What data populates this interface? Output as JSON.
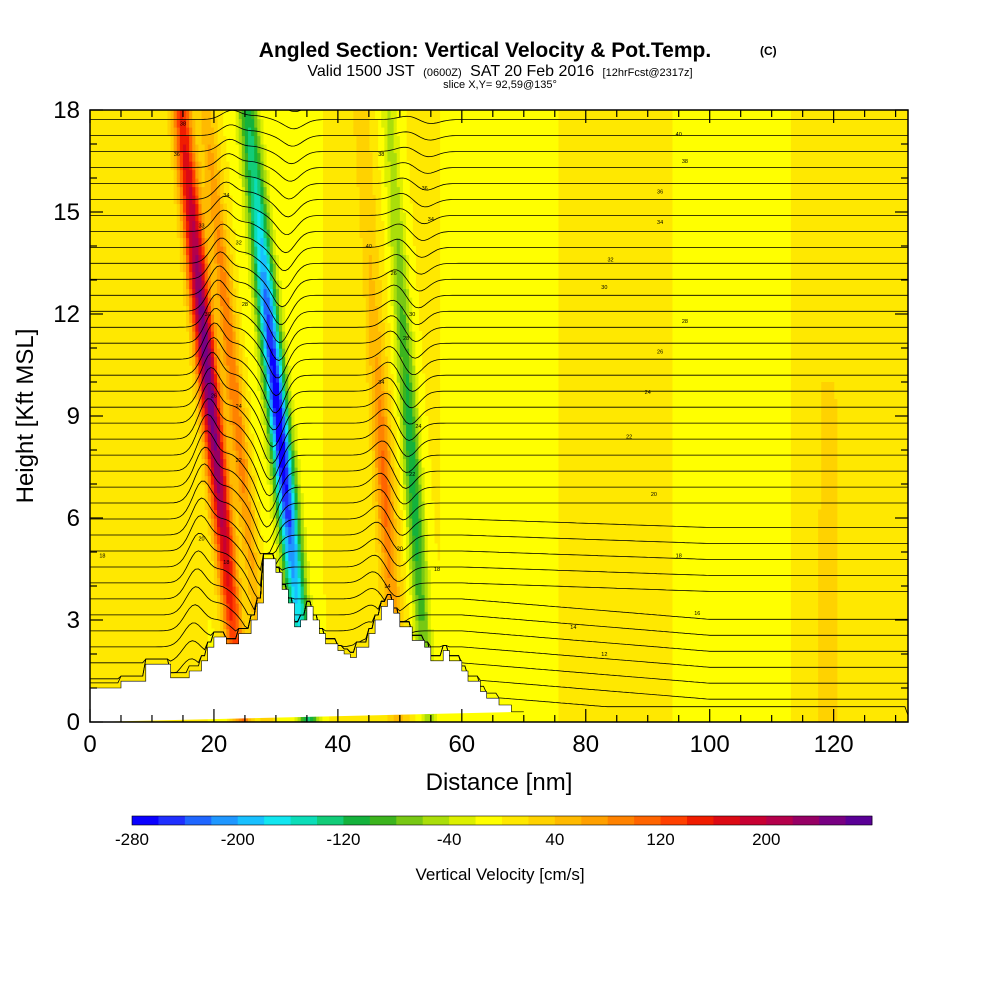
{
  "chart_data": {
    "type": "heatmap",
    "title": "Angled Section: Vertical Velocity & Pot.Temp.",
    "title_mark": "(C)",
    "subtitle_parts": [
      "Valid 1500 JST",
      "(0600Z)",
      "SAT 20 Feb 2016",
      "[12hrFcst@2317z]"
    ],
    "slice_label": "slice X,Y= 92,59@135°",
    "xlabel": "Distance [nm]",
    "ylabel": "Height [Kft MSL]",
    "xlim": [
      0,
      132
    ],
    "ylim": [
      0,
      18
    ],
    "x_ticks": [
      0,
      20,
      40,
      60,
      80,
      100,
      120
    ],
    "y_ticks": [
      0,
      3,
      6,
      9,
      12,
      15,
      18
    ],
    "grid": false,
    "colorbar": {
      "label": "Vertical Velocity [cm/s]",
      "range": [
        -280,
        280
      ],
      "step": 20,
      "tick_labels": [
        -280,
        -200,
        -120,
        -40,
        40,
        120,
        200
      ],
      "colors": [
        "#0a00ff",
        "#1f2fff",
        "#1f66ff",
        "#1f97ff",
        "#18c0ff",
        "#12e6f0",
        "#0cddb8",
        "#12cc78",
        "#14b23c",
        "#3cb41e",
        "#78c814",
        "#aade0a",
        "#dcf000",
        "#ffff00",
        "#ffe800",
        "#ffd200",
        "#ffba00",
        "#ffa000",
        "#ff8200",
        "#ff6400",
        "#ff4000",
        "#f01c00",
        "#dc0a14",
        "#c80032",
        "#b4004b",
        "#960064",
        "#780082",
        "#5a0096"
      ]
    },
    "velocity_features": [
      {
        "name": "updraft-1",
        "x_center": 19,
        "z_range": [
          2.5,
          18
        ],
        "peak": 260
      },
      {
        "name": "updraft-2",
        "x_center": 23,
        "z_range": [
          2.5,
          18
        ],
        "peak": 100
      },
      {
        "name": "downdraft-1",
        "x_center": 29,
        "z_range": [
          5,
          18
        ],
        "peak": -280
      },
      {
        "name": "updraft-3",
        "x_center": 47.5,
        "z_range": [
          3,
          11
        ],
        "peak": 100
      },
      {
        "name": "downdraft-2",
        "x_center": 51,
        "z_range": [
          3.5,
          17
        ],
        "peak": -120
      }
    ],
    "terrain": {
      "x": [
        0,
        5,
        5,
        9,
        9,
        13,
        13,
        16,
        16,
        18,
        18,
        19,
        19,
        20,
        20,
        22,
        22,
        24,
        24,
        26,
        26,
        27,
        27,
        28,
        28,
        30,
        30,
        31,
        31,
        32,
        32,
        33,
        33,
        34,
        34,
        35,
        35,
        36,
        36,
        37,
        37,
        38,
        38,
        40,
        40,
        41,
        41,
        42,
        42,
        43,
        43,
        45,
        45,
        46,
        46,
        47,
        47,
        48,
        48,
        49,
        49,
        50,
        50,
        52,
        52,
        54,
        54,
        55,
        55,
        57,
        57,
        58,
        58,
        60,
        60,
        61,
        61,
        63,
        63,
        64,
        64,
        66,
        66,
        68,
        68,
        70,
        70,
        132
      ],
      "z": [
        1.0,
        1.0,
        1.2,
        1.2,
        1.7,
        1.7,
        1.3,
        1.3,
        1.5,
        1.5,
        1.8,
        1.8,
        2.2,
        2.2,
        2.5,
        2.5,
        2.3,
        2.3,
        2.6,
        2.6,
        3.0,
        3.0,
        3.5,
        3.5,
        4.8,
        4.8,
        4.4,
        4.4,
        3.9,
        3.9,
        3.5,
        3.5,
        2.8,
        2.8,
        3.0,
        3.0,
        3.4,
        3.4,
        3.0,
        3.0,
        2.6,
        2.6,
        2.3,
        2.3,
        2.1,
        2.1,
        2.0,
        2.0,
        1.9,
        1.9,
        2.2,
        2.2,
        2.6,
        2.6,
        3.0,
        3.0,
        3.4,
        3.4,
        3.6,
        3.6,
        3.2,
        3.2,
        2.8,
        2.8,
        2.4,
        2.4,
        2.2,
        2.2,
        1.8,
        1.8,
        2.1,
        2.1,
        1.8,
        1.8,
        1.5,
        1.5,
        1.2,
        1.2,
        0.9,
        0.9,
        0.7,
        0.7,
        0.5,
        0.5,
        0.3,
        0.3,
        0.3
      ]
    },
    "isentrope_labels": [
      {
        "x": 15,
        "z": 17.6,
        "text": "38"
      },
      {
        "x": 14,
        "z": 16.7,
        "text": "36"
      },
      {
        "x": 22,
        "z": 15.5,
        "text": "34"
      },
      {
        "x": 18,
        "z": 14.6,
        "text": "33"
      },
      {
        "x": 24,
        "z": 14.1,
        "text": "32"
      },
      {
        "x": 19,
        "z": 12.0,
        "text": "30"
      },
      {
        "x": 25,
        "z": 12.3,
        "text": "28"
      },
      {
        "x": 20,
        "z": 9.6,
        "text": "26"
      },
      {
        "x": 24,
        "z": 9.3,
        "text": "24"
      },
      {
        "x": 24,
        "z": 7.7,
        "text": "22"
      },
      {
        "x": 18,
        "z": 5.4,
        "text": "20"
      },
      {
        "x": 22,
        "z": 4.7,
        "text": "18"
      },
      {
        "x": 2,
        "z": 4.9,
        "text": "18"
      },
      {
        "x": 48,
        "z": 4.0,
        "text": "14"
      },
      {
        "x": 47,
        "z": 10.0,
        "text": "34"
      },
      {
        "x": 49,
        "z": 13.2,
        "text": "26"
      },
      {
        "x": 52,
        "z": 12.0,
        "text": "30"
      },
      {
        "x": 51,
        "z": 11.3,
        "text": "28"
      },
      {
        "x": 53,
        "z": 8.7,
        "text": "24"
      },
      {
        "x": 52,
        "z": 7.3,
        "text": "22"
      },
      {
        "x": 50,
        "z": 5.1,
        "text": "20"
      },
      {
        "x": 56,
        "z": 4.5,
        "text": "18"
      },
      {
        "x": 47,
        "z": 16.7,
        "text": "38"
      },
      {
        "x": 54,
        "z": 15.7,
        "text": "36"
      },
      {
        "x": 55,
        "z": 14.8,
        "text": "34"
      },
      {
        "x": 45,
        "z": 14.0,
        "text": "40"
      },
      {
        "x": 95,
        "z": 17.3,
        "text": "40"
      },
      {
        "x": 96,
        "z": 16.5,
        "text": "38"
      },
      {
        "x": 92,
        "z": 15.6,
        "text": "36"
      },
      {
        "x": 92,
        "z": 14.7,
        "text": "34"
      },
      {
        "x": 84,
        "z": 13.6,
        "text": "32"
      },
      {
        "x": 83,
        "z": 12.8,
        "text": "30"
      },
      {
        "x": 96,
        "z": 11.8,
        "text": "28"
      },
      {
        "x": 92,
        "z": 10.9,
        "text": "26"
      },
      {
        "x": 90,
        "z": 9.7,
        "text": "24"
      },
      {
        "x": 87,
        "z": 8.4,
        "text": "22"
      },
      {
        "x": 91,
        "z": 6.7,
        "text": "20"
      },
      {
        "x": 95,
        "z": 4.9,
        "text": "18"
      },
      {
        "x": 98,
        "z": 3.2,
        "text": "16"
      },
      {
        "x": 78,
        "z": 2.8,
        "text": "14"
      },
      {
        "x": 83,
        "z": 2.0,
        "text": "12"
      }
    ]
  }
}
